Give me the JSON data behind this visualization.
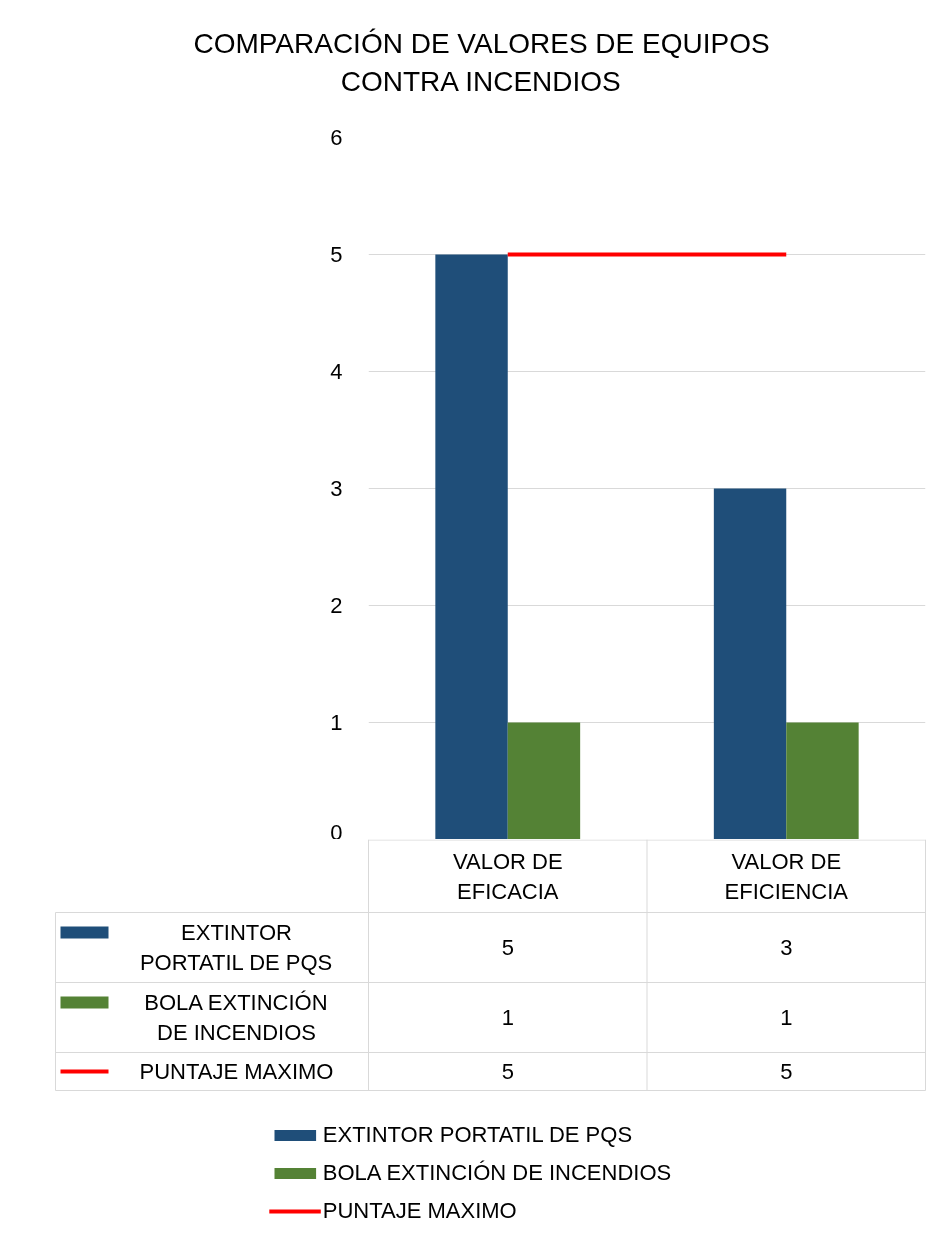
{
  "chart_data": {
    "type": "bar",
    "title": "COMPARACIÓN DE VALORES DE EQUIPOS CONTRA INCENDIOS",
    "categories": [
      "VALOR DE EFICACIA",
      "VALOR DE EFICIENCIA"
    ],
    "series": [
      {
        "name": "EXTINTOR PORTATIL DE PQS",
        "color": "#1f4e79",
        "values": [
          5,
          3
        ]
      },
      {
        "name": "BOLA EXTINCIÓN DE INCENDIOS",
        "color": "#548235",
        "values": [
          1,
          1
        ]
      },
      {
        "name": "PUNTAJE MAXIMO",
        "color": "#ff0000",
        "type": "line",
        "values": [
          5,
          5
        ]
      }
    ],
    "ylim": [
      0,
      6
    ],
    "yticks": [
      0,
      1,
      2,
      3,
      4,
      5,
      6
    ],
    "grid": "y",
    "legend": "bottom",
    "data_labels": true
  }
}
